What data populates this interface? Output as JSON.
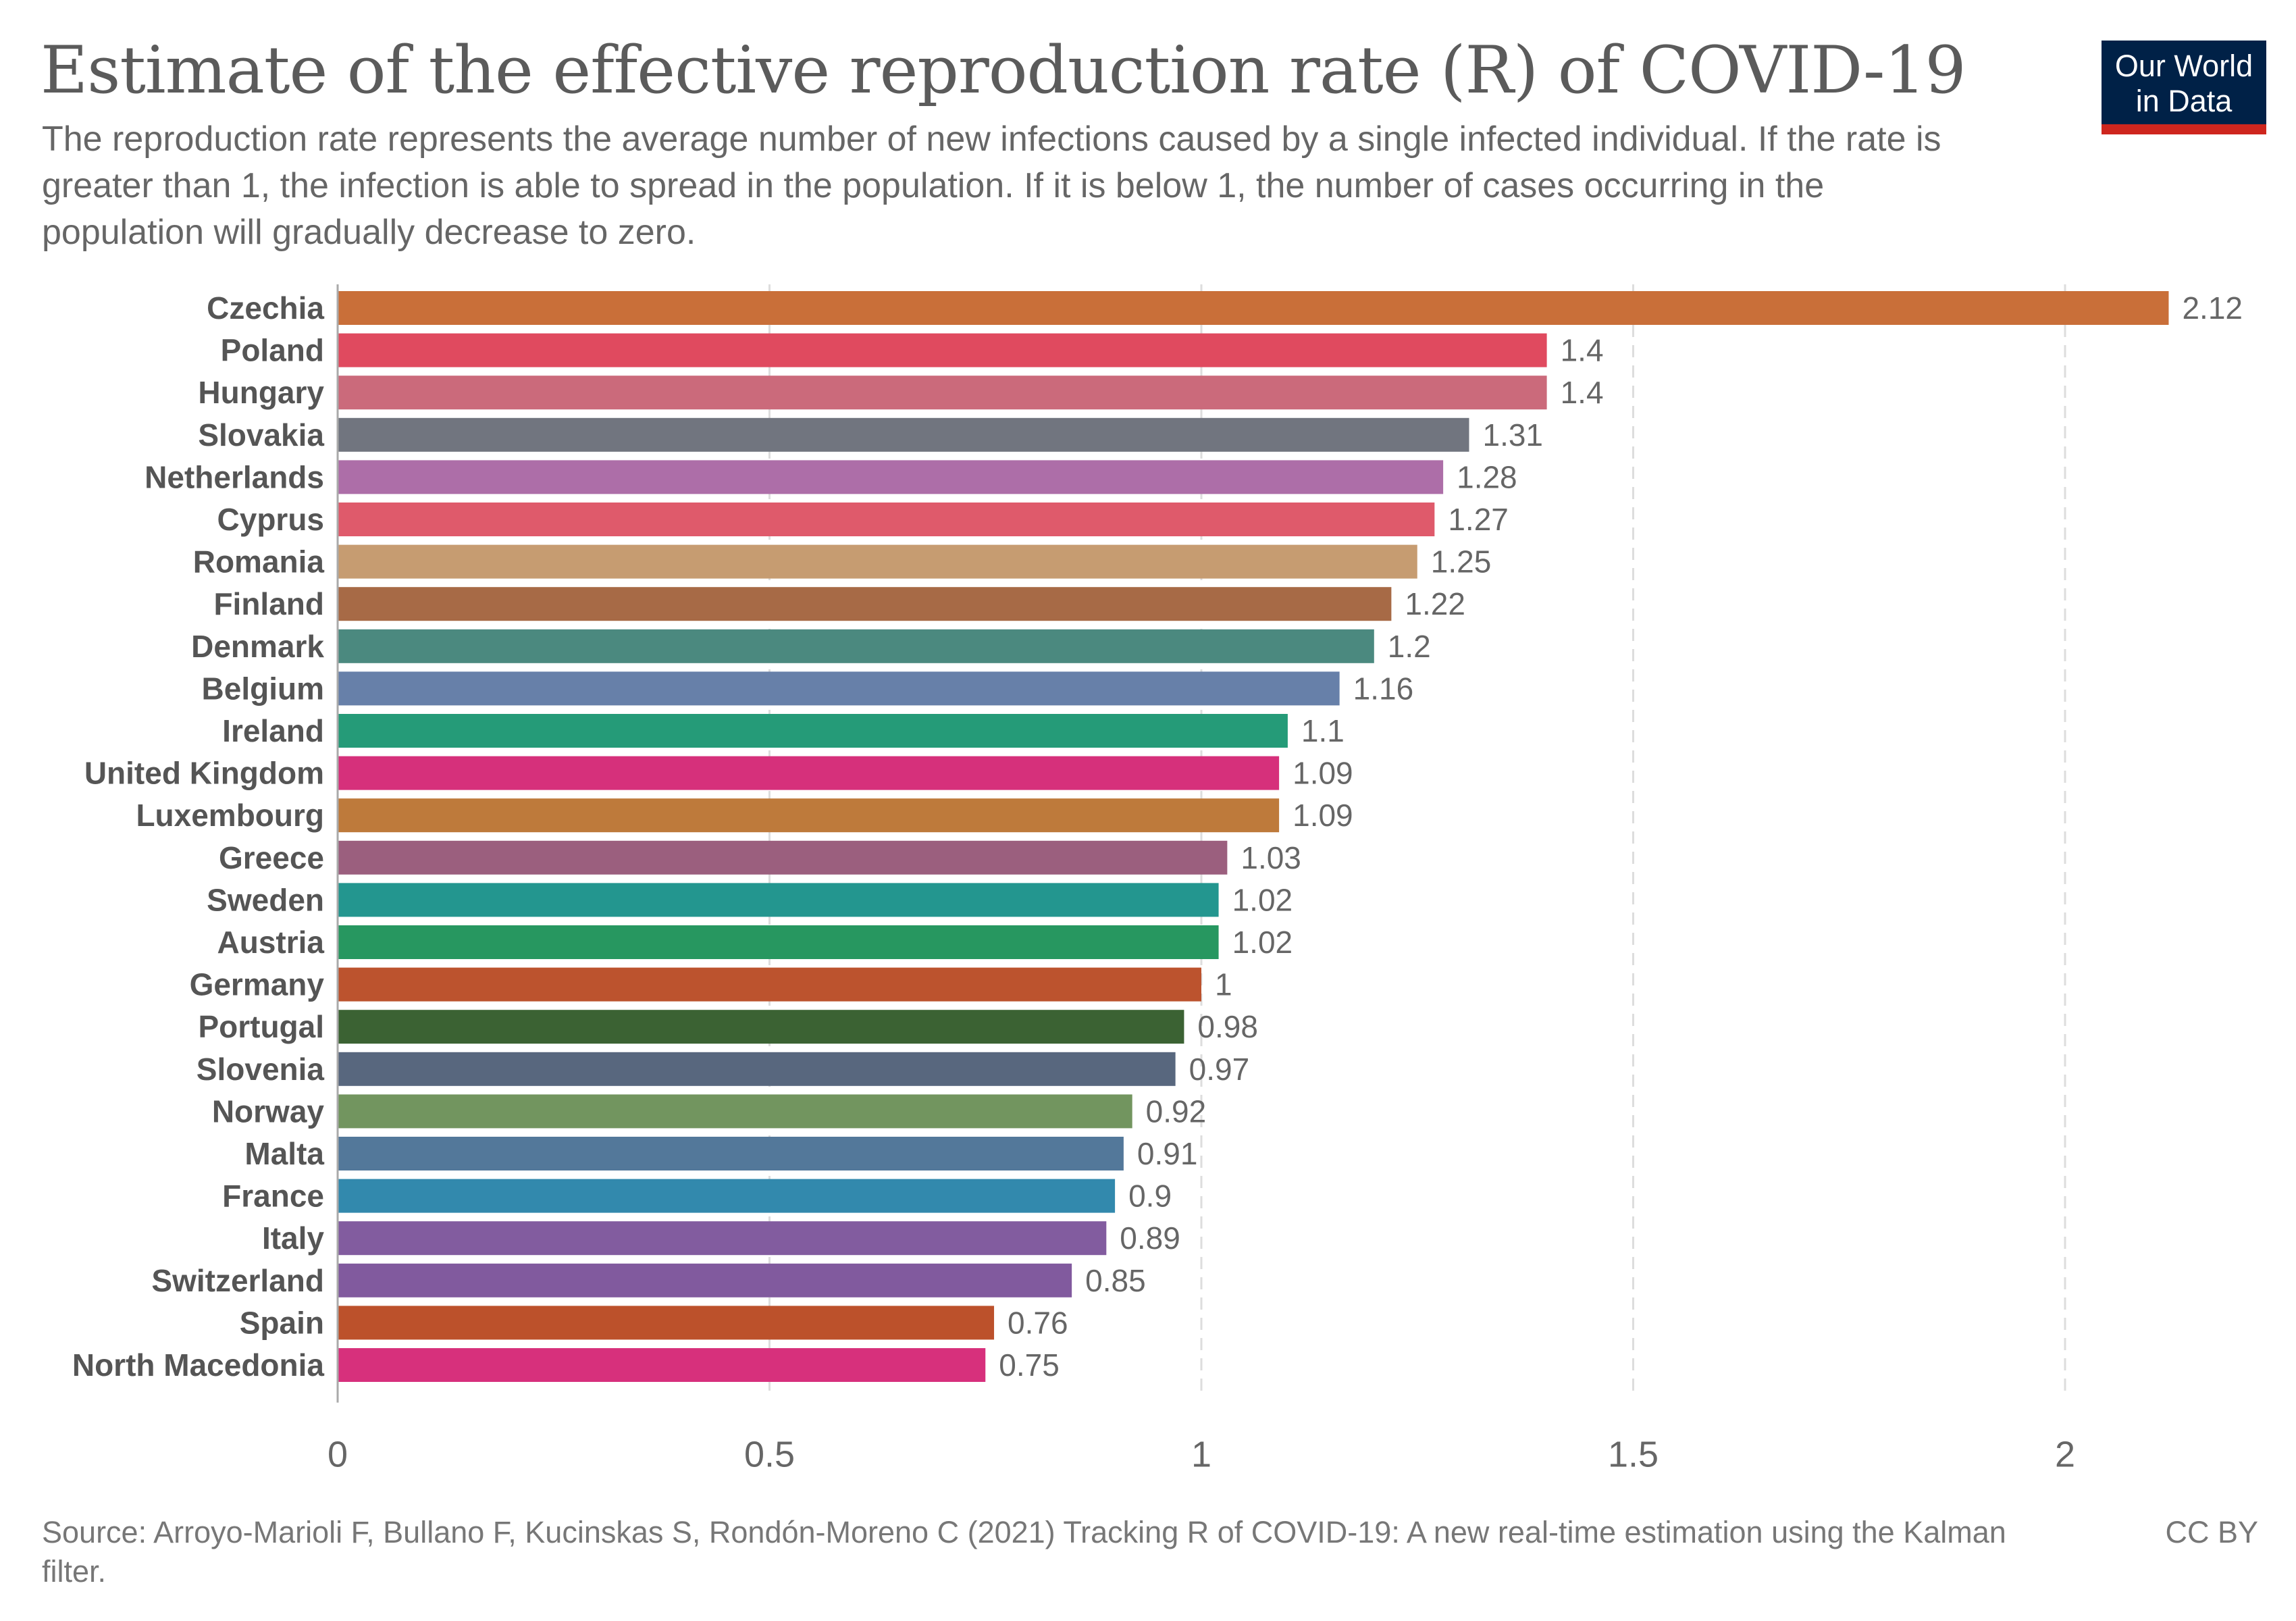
{
  "header": {
    "title": "Estimate of the effective reproduction rate (R) of COVID-19",
    "subtitle": "The reproduction rate represents the average number of new infections caused by a single infected individual. If the rate is greater than 1, the infection is able to spread in the population. If it is below 1, the number of cases occurring in the population will gradually decrease to zero.",
    "logo_line1": "Our World",
    "logo_line2": "in Data"
  },
  "footer": {
    "source": "Source: Arroyo-Marioli F, Bullano F, Kucinskas S, Rondón-Moreno C (2021) Tracking R of COVID-19: A new real-time estimation using the Kalman filter.",
    "license": "CC BY"
  },
  "chart_data": {
    "type": "bar",
    "orientation": "horizontal",
    "title": "Estimate of the effective reproduction rate (R) of COVID-19",
    "xlabel": "",
    "ylabel": "",
    "xlim": [
      0,
      2.2
    ],
    "xticks": [
      0,
      0.5,
      1,
      1.5,
      2
    ],
    "xtick_labels": [
      "0",
      "0.5",
      "1",
      "1.5",
      "2"
    ],
    "grid": "vertical dashed",
    "categories": [
      "Czechia",
      "Poland",
      "Hungary",
      "Slovakia",
      "Netherlands",
      "Cyprus",
      "Romania",
      "Finland",
      "Denmark",
      "Belgium",
      "Ireland",
      "United Kingdom",
      "Luxembourg",
      "Greece",
      "Sweden",
      "Austria",
      "Germany",
      "Portugal",
      "Slovenia",
      "Norway",
      "Malta",
      "France",
      "Italy",
      "Switzerland",
      "Spain",
      "North Macedonia"
    ],
    "values": [
      2.12,
      1.4,
      1.4,
      1.31,
      1.28,
      1.27,
      1.25,
      1.22,
      1.2,
      1.16,
      1.1,
      1.09,
      1.09,
      1.03,
      1.02,
      1.02,
      1,
      0.98,
      0.97,
      0.92,
      0.91,
      0.9,
      0.89,
      0.85,
      0.76,
      0.75
    ],
    "value_labels": [
      "2.12",
      "1.4",
      "1.4",
      "1.31",
      "1.28",
      "1.27",
      "1.25",
      "1.22",
      "1.2",
      "1.16",
      "1.1",
      "1.09",
      "1.09",
      "1.03",
      "1.02",
      "1.02",
      "1",
      "0.98",
      "0.97",
      "0.92",
      "0.91",
      "0.9",
      "0.89",
      "0.85",
      "0.76",
      "0.75"
    ],
    "colors": [
      "#c96f39",
      "#e04a5f",
      "#cb6a7b",
      "#71757f",
      "#ad6ea8",
      "#df5a6b",
      "#c69c71",
      "#a76a46",
      "#4b897f",
      "#6780a9",
      "#259b78",
      "#d6307b",
      "#be7a3b",
      "#9b5f7e",
      "#23968f",
      "#279760",
      "#bc532e",
      "#3b6233",
      "#58677e",
      "#72955f",
      "#53789a",
      "#3289ad",
      "#825c9f",
      "#815a9e",
      "#bc512b",
      "#d7307c"
    ]
  }
}
